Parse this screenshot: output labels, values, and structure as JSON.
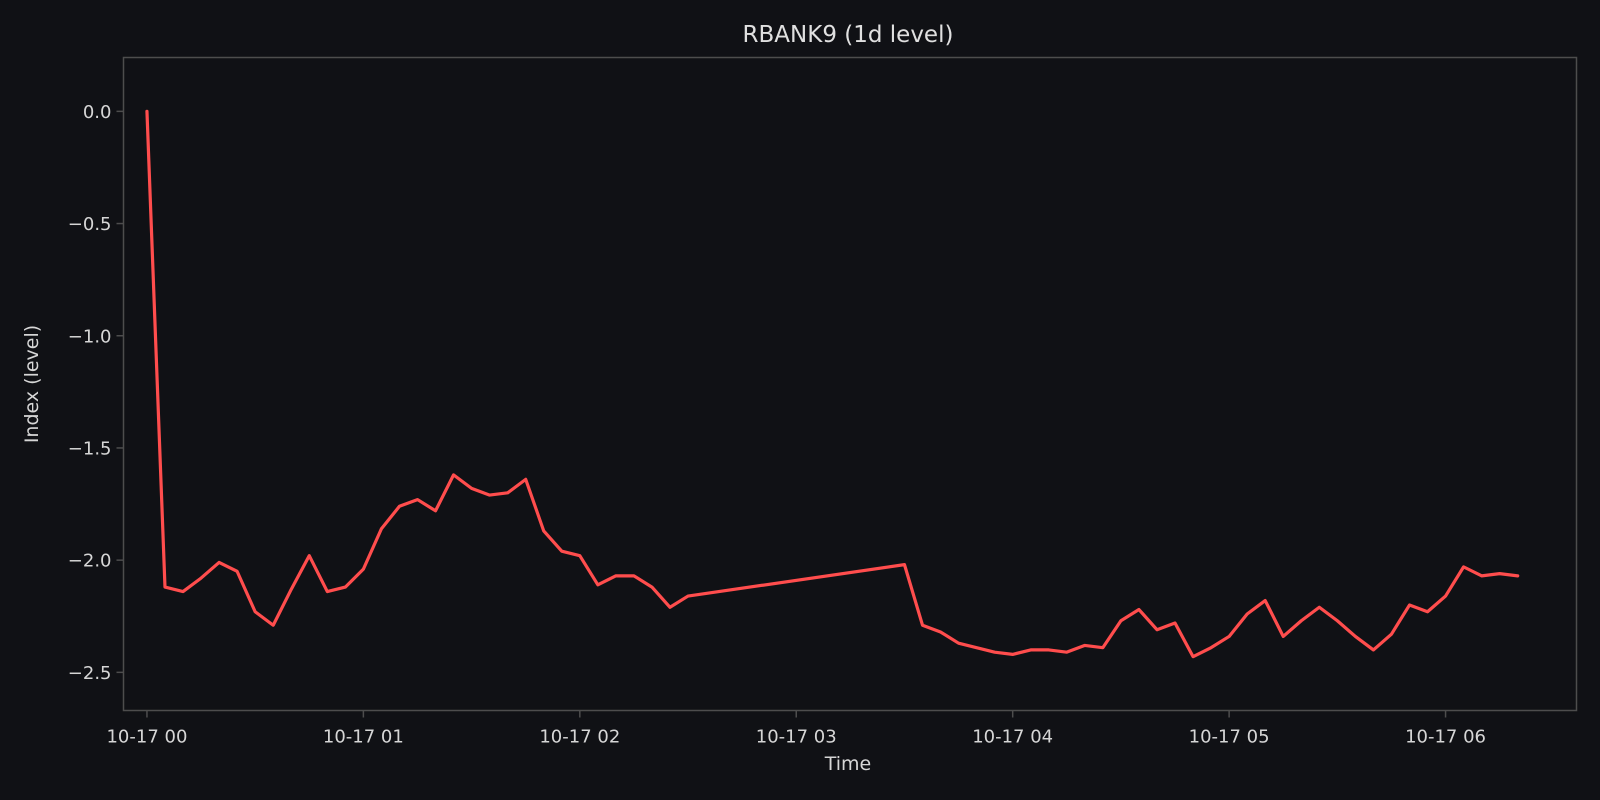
{
  "chart_data": {
    "type": "line",
    "title": "RBANK9 (1d level)",
    "xlabel": "Time",
    "ylabel": "Index (level)",
    "xlim": [
      "10-17 00:00",
      "10-17 06:35"
    ],
    "ylim": [
      -2.67,
      0.24
    ],
    "grid": false,
    "x_ticks": [
      {
        "t": 0,
        "label": "10-17 00"
      },
      {
        "t": 60,
        "label": "10-17 01"
      },
      {
        "t": 120,
        "label": "10-17 02"
      },
      {
        "t": 180,
        "label": "10-17 03"
      },
      {
        "t": 240,
        "label": "10-17 04"
      },
      {
        "t": 300,
        "label": "10-17 05"
      },
      {
        "t": 360,
        "label": "10-17 06"
      }
    ],
    "y_ticks": [
      {
        "v": 0.0,
        "label": "0.0"
      },
      {
        "v": -0.5,
        "label": "−0.5"
      },
      {
        "v": -1.0,
        "label": "−1.0"
      },
      {
        "v": -1.5,
        "label": "−1.5"
      },
      {
        "v": -2.0,
        "label": "−2.0"
      },
      {
        "v": -2.5,
        "label": "−2.5"
      }
    ],
    "series": [
      {
        "color": "#ff4d4d",
        "x": [
          "10-17 00:00",
          "10-17 00:05",
          "10-17 00:10",
          "10-17 00:15",
          "10-17 00:20",
          "10-17 00:25",
          "10-17 00:30",
          "10-17 00:35",
          "10-17 00:40",
          "10-17 00:45",
          "10-17 00:50",
          "10-17 00:55",
          "10-17 01:00",
          "10-17 01:05",
          "10-17 01:10",
          "10-17 01:15",
          "10-17 01:20",
          "10-17 01:25",
          "10-17 01:30",
          "10-17 01:35",
          "10-17 01:40",
          "10-17 01:45",
          "10-17 01:50",
          "10-17 01:55",
          "10-17 02:00",
          "10-17 02:05",
          "10-17 02:10",
          "10-17 02:15",
          "10-17 02:20",
          "10-17 02:25",
          "10-17 02:30",
          "10-17 03:30",
          "10-17 03:35",
          "10-17 03:40",
          "10-17 03:45",
          "10-17 03:50",
          "10-17 03:55",
          "10-17 04:00",
          "10-17 04:05",
          "10-17 04:10",
          "10-17 04:15",
          "10-17 04:20",
          "10-17 04:25",
          "10-17 04:30",
          "10-17 04:35",
          "10-17 04:40",
          "10-17 04:45",
          "10-17 04:50",
          "10-17 04:55",
          "10-17 05:00",
          "10-17 05:05",
          "10-17 05:10",
          "10-17 05:15",
          "10-17 05:20",
          "10-17 05:25",
          "10-17 05:30",
          "10-17 05:35",
          "10-17 05:40",
          "10-17 05:45",
          "10-17 05:50",
          "10-17 05:55",
          "10-17 06:00",
          "10-17 06:05",
          "10-17 06:10",
          "10-17 06:15",
          "10-17 06:20"
        ],
        "y": [
          0.0,
          -2.12,
          -2.14,
          -2.08,
          -2.01,
          -2.05,
          -2.23,
          -2.29,
          -2.13,
          -1.98,
          -2.14,
          -2.12,
          -2.04,
          -1.86,
          -1.76,
          -1.73,
          -1.78,
          -1.62,
          -1.68,
          -1.71,
          -1.7,
          -1.64,
          -1.87,
          -1.96,
          -1.98,
          -2.11,
          -2.07,
          -2.07,
          -2.12,
          -2.21,
          -2.16,
          -2.02,
          -2.29,
          -2.32,
          -2.37,
          -2.39,
          -2.41,
          -2.42,
          -2.4,
          -2.4,
          -2.41,
          -2.38,
          -2.39,
          -2.27,
          -2.22,
          -2.31,
          -2.28,
          -2.43,
          -2.39,
          -2.34,
          -2.24,
          -2.18,
          -2.34,
          -2.27,
          -2.21,
          -2.27,
          -2.34,
          -2.4,
          -2.33,
          -2.2,
          -2.23,
          -2.16,
          -2.03,
          -2.07,
          -2.06,
          -2.07
        ]
      }
    ]
  },
  "style": {
    "background": "#101115",
    "spine": "#4d4d4d",
    "text": "#d6d6d6"
  }
}
